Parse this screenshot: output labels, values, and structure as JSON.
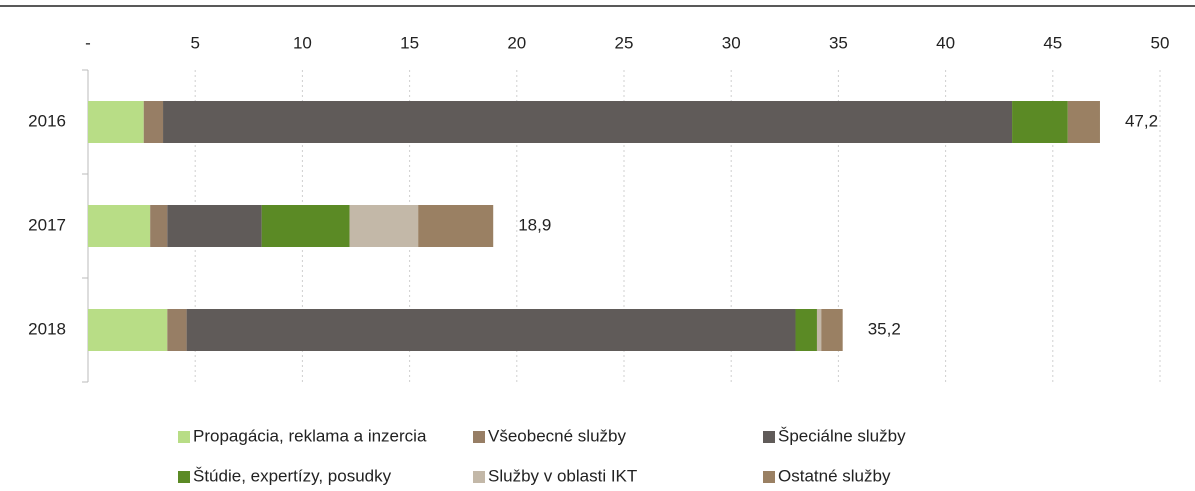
{
  "chart_data": {
    "type": "stacked-bar-horizontal",
    "categories": [
      "2016",
      "2017",
      "2018"
    ],
    "series": [
      {
        "name": "Propagácia, reklama a inzercia",
        "color": "#b8dd86",
        "values": [
          2.6,
          2.9,
          3.7
        ]
      },
      {
        "name": "Všeobecné služby",
        "color": "#977e65",
        "values": [
          0.9,
          0.8,
          0.9
        ]
      },
      {
        "name": "Špeciálne služby",
        "color": "#605b59",
        "values": [
          39.6,
          4.4,
          28.4
        ]
      },
      {
        "name": "Štúdie, expertízy, posudky",
        "color": "#5b8a25",
        "values": [
          2.6,
          4.1,
          1.0
        ]
      },
      {
        "name": "Služby v oblasti IKT",
        "color": "#c3b8a8",
        "values": [
          0,
          3.2,
          0.2
        ]
      },
      {
        "name": "Ostatné služby",
        "color": "#9a8063",
        "values": [
          1.5,
          3.5,
          1.0
        ]
      }
    ],
    "totals": [
      47.2,
      18.9,
      35.2
    ],
    "total_labels": [
      "47,2",
      "18,9",
      "35,2"
    ],
    "xlim": [
      0,
      50
    ],
    "xticks": [
      {
        "value": 0,
        "label": "-"
      },
      5,
      10,
      15,
      20,
      25,
      30,
      35,
      40,
      45,
      50
    ],
    "grid": true
  }
}
